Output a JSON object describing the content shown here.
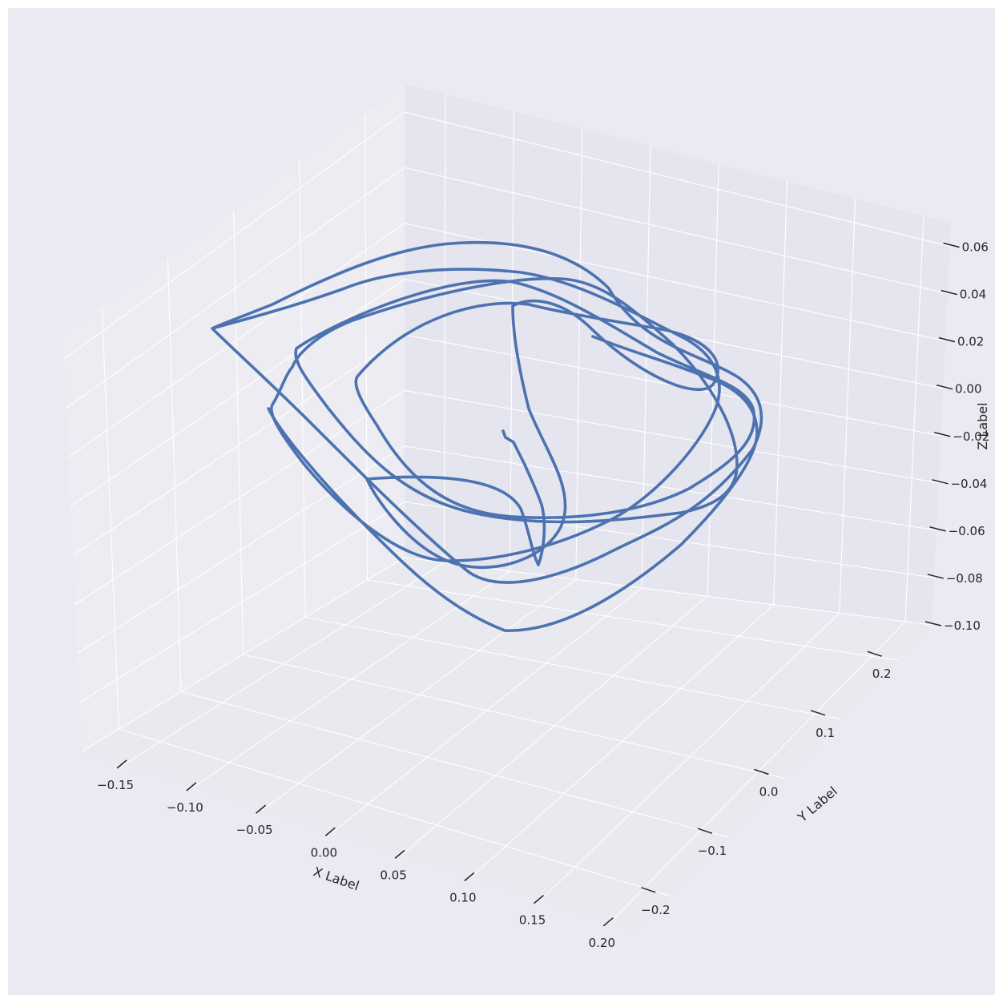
{
  "chart_data": {
    "type": "line3d",
    "title": "",
    "xlabel": "X Label",
    "ylabel": "Y Label",
    "zlabel": "Z Label",
    "xlim": [
      -0.18,
      0.22
    ],
    "ylim": [
      -0.26,
      0.26
    ],
    "zlim": [
      -0.1,
      0.07
    ],
    "grid": true,
    "x_ticks": [
      "−0.15",
      "−0.10",
      "−0.05",
      "0.00",
      "0.05",
      "0.10",
      "0.15",
      "0.20"
    ],
    "y_ticks": [
      "−0.2",
      "−0.1",
      "0.0",
      "0.1",
      "0.2"
    ],
    "z_ticks": [
      "−0.10",
      "−0.08",
      "−0.06",
      "−0.04",
      "−0.02",
      "0.00",
      "0.02",
      "0.04",
      "0.06"
    ],
    "series": [
      {
        "color": "#4c72b0",
        "description_of_path": "trajectory spiralling outward from near origin in roughly square loops"
      }
    ],
    "colors": {
      "background": "#eaeaf2",
      "pane": "#e5e5ef",
      "grid": "#ffffff",
      "line": "#4c72b0"
    }
  }
}
